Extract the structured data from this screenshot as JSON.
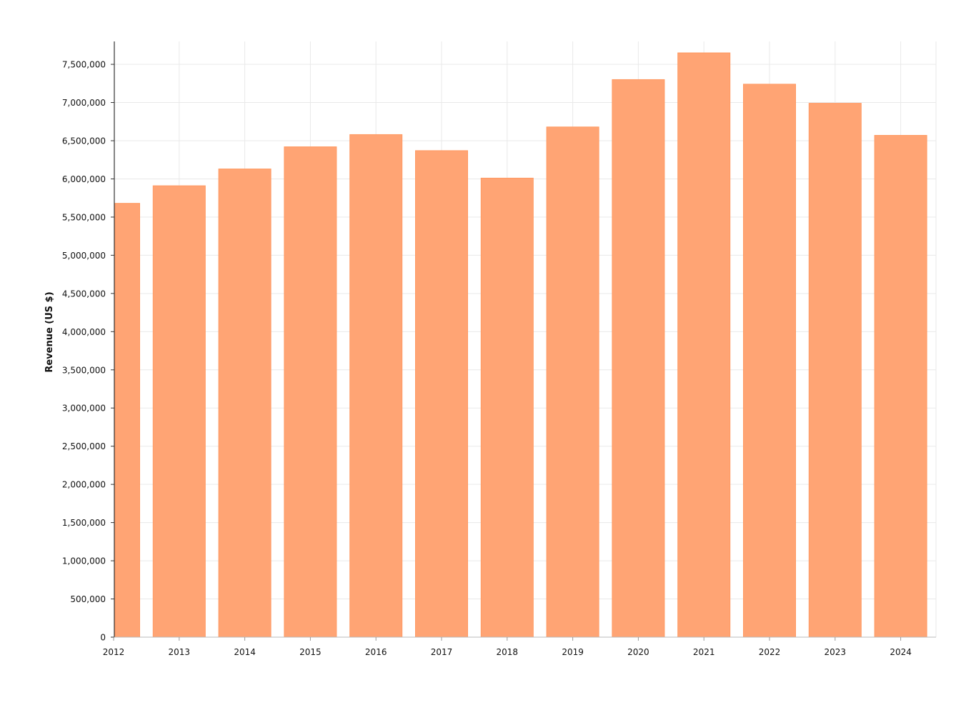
{
  "chart_data": {
    "type": "bar",
    "title": "",
    "xlabel": "",
    "ylabel": "Revenue (US $)",
    "categories": [
      "2012",
      "2013",
      "2014",
      "2015",
      "2016",
      "2017",
      "2018",
      "2019",
      "2020",
      "2021",
      "2022",
      "2023",
      "2024"
    ],
    "series": [
      {
        "name": "",
        "values": [
          5680000,
          5910000,
          6130000,
          6420000,
          6580000,
          6370000,
          6010000,
          6680000,
          7300000,
          7650000,
          7240000,
          6990000,
          6570000
        ]
      }
    ],
    "ylim": [
      0,
      7800000
    ],
    "yticks": [
      0,
      500000,
      1000000,
      1500000,
      2000000,
      2500000,
      3000000,
      3500000,
      4000000,
      4500000,
      5000000,
      5500000,
      6000000,
      6500000,
      7000000,
      7500000
    ],
    "ytick_labels": [
      "0",
      "500,000",
      "1,000,000",
      "1,500,000",
      "2,000,000",
      "2,500,000",
      "3,000,000",
      "3,500,000",
      "4,000,000",
      "4,500,000",
      "5,000,000",
      "5,500,000",
      "6,000,000",
      "6,500,000",
      "7,000,000",
      "7,500,000"
    ],
    "grid": true,
    "legend": "none",
    "colors": {
      "bar": "#FFA474",
      "bar_edge": "#FF9A63",
      "grid": "#e9e9e9",
      "axis": "#333333",
      "text": "#111111"
    }
  }
}
